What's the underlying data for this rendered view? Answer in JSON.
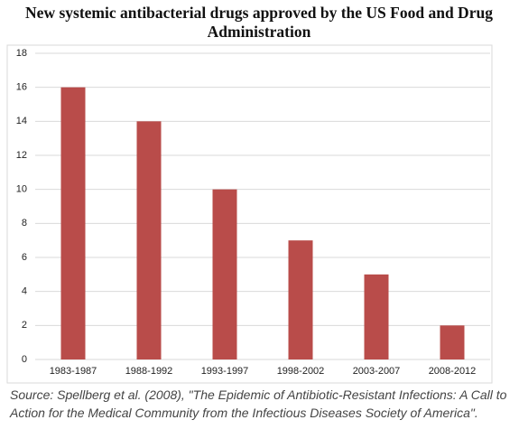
{
  "chart_data": {
    "type": "bar",
    "title": "New systemic antibacterial drugs approved by the US Food and Drug Administration",
    "categories": [
      "1983-1987",
      "1988-1992",
      "1993-1997",
      "1998-2002",
      "2003-2007",
      "2008-2012"
    ],
    "values": [
      16,
      14,
      10,
      7,
      5,
      2
    ],
    "color": "#b94c4a",
    "ylim": [
      0,
      18
    ],
    "yticks": [
      0,
      2,
      4,
      6,
      8,
      10,
      12,
      14,
      16,
      18
    ],
    "grid": true,
    "source": "Source: Spellberg et al. (2008), \"The Epidemic of Antibiotic-Resistant Infections: A Call to Action for the Medical Community from the Infectious Diseases Society of America\"."
  }
}
